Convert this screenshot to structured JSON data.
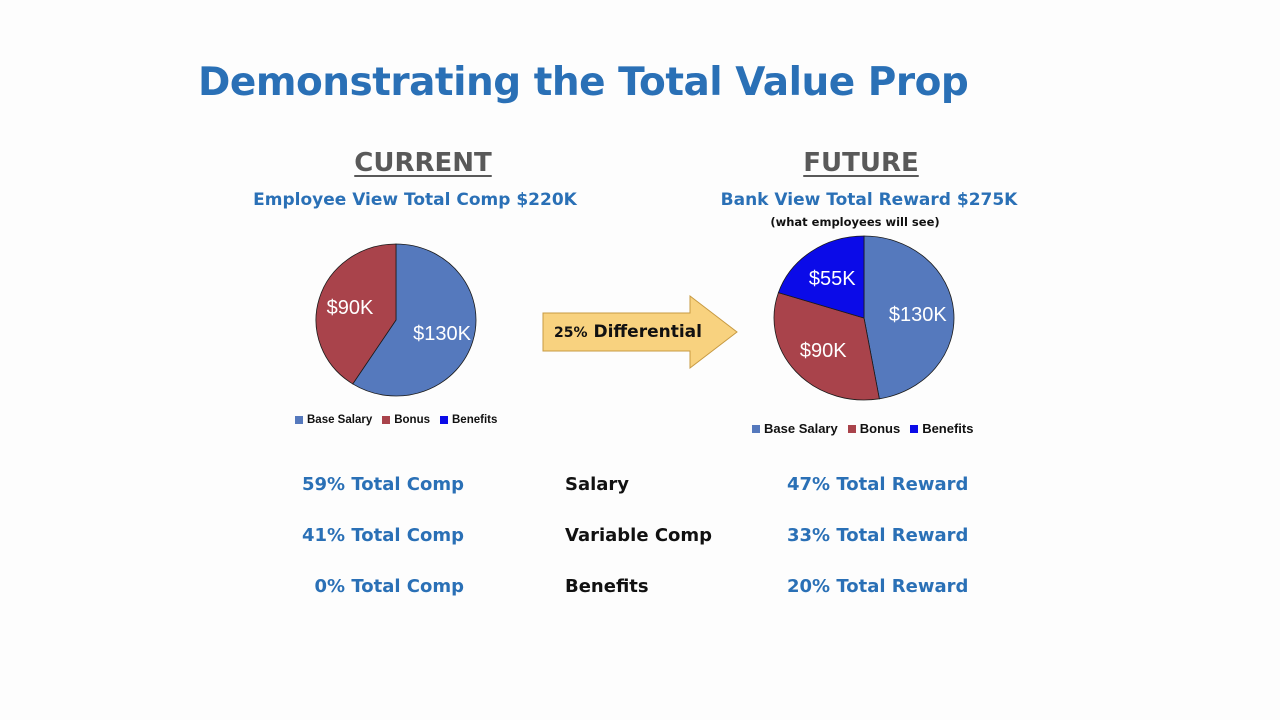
{
  "title": "Demonstrating the Total Value Prop",
  "current": {
    "heading": "CURRENT",
    "subtitle": "Employee View Total Comp $220K"
  },
  "future": {
    "heading": "FUTURE",
    "subtitle": "Bank View Total Reward $275K",
    "note": "(what employees will see)"
  },
  "arrow": {
    "pct": "25%",
    "label": "Differential"
  },
  "colors": {
    "base_salary": "#5579bd",
    "bonus": "#a9434b",
    "benefits": "#0b0be8",
    "title_blue": "#2a70b6",
    "arrow_fill": "#f8d27f"
  },
  "chart_data": [
    {
      "type": "pie",
      "legend": [
        "Base Salary",
        "Bonus",
        "Benefits"
      ],
      "legend_position": "bottom",
      "slices": [
        {
          "name": "Base Salary",
          "value": 130,
          "label": "$130K"
        },
        {
          "name": "Bonus",
          "value": 90,
          "label": "$90K"
        },
        {
          "name": "Benefits",
          "value": 0,
          "label": ""
        }
      ]
    },
    {
      "type": "pie",
      "legend": [
        "Base Salary",
        "Bonus",
        "Benefits"
      ],
      "legend_position": "bottom",
      "slices": [
        {
          "name": "Base Salary",
          "value": 130,
          "label": "$130K"
        },
        {
          "name": "Bonus",
          "value": 90,
          "label": "$90K"
        },
        {
          "name": "Benefits",
          "value": 55,
          "label": "$55K"
        }
      ]
    }
  ],
  "comparison": [
    {
      "current": "59% Total Comp",
      "category": "Salary",
      "future": "47% Total Reward"
    },
    {
      "current": "41% Total Comp",
      "category": "Variable Comp",
      "future": "33% Total Reward"
    },
    {
      "current": "0% Total Comp",
      "category": "Benefits",
      "future": "20% Total Reward"
    }
  ]
}
